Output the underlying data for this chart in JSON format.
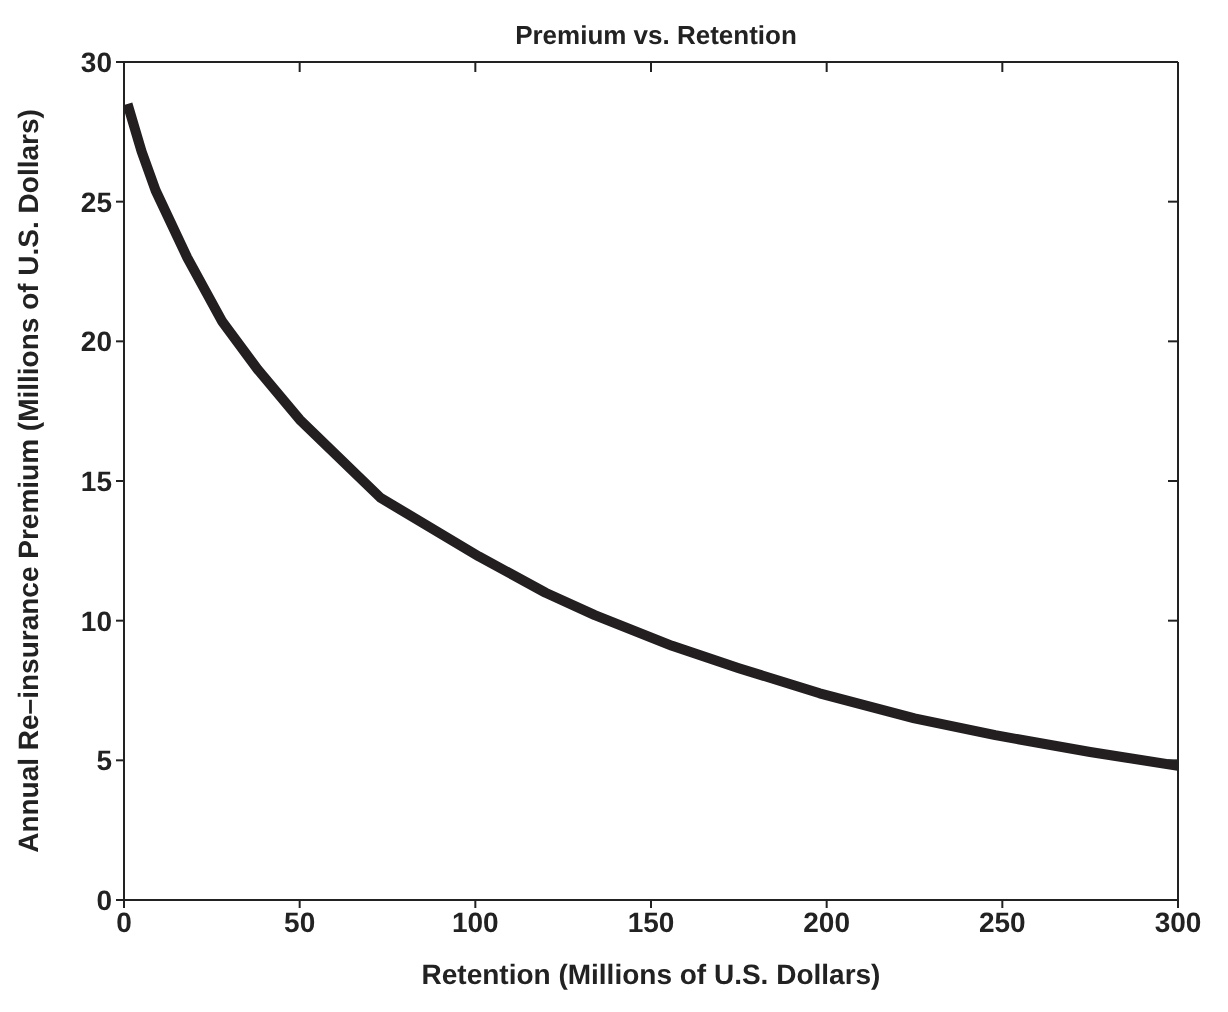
{
  "chart_data": {
    "type": "line",
    "title": "Premium vs. Retention",
    "xlabel": "Retention (Millions of U.S. Dollars)",
    "ylabel": "Annual Re–insurance Premium (Millions of U.S. Dollars)",
    "x": [
      1,
      5,
      9,
      18,
      28,
      38,
      50,
      73,
      101,
      120,
      134,
      156,
      175,
      198,
      225,
      248,
      275,
      300
    ],
    "series": [
      {
        "color": "#231f20",
        "values": [
          28.5,
          26.8,
          25.4,
          23,
          20.7,
          19,
          17.2,
          14.4,
          12.3,
          11,
          10.2,
          9.1,
          8.3,
          7.4,
          6.5,
          5.9,
          5.3,
          4.8
        ]
      }
    ],
    "xlim": [
      0,
      300
    ],
    "xticks": [
      0,
      50,
      100,
      150,
      200,
      250,
      300
    ],
    "ylim": [
      0,
      30
    ],
    "yticks": [
      0,
      5,
      10,
      15,
      20,
      25,
      30
    ],
    "grid": false,
    "legend": false,
    "marker": "none",
    "line_style": "solid"
  }
}
